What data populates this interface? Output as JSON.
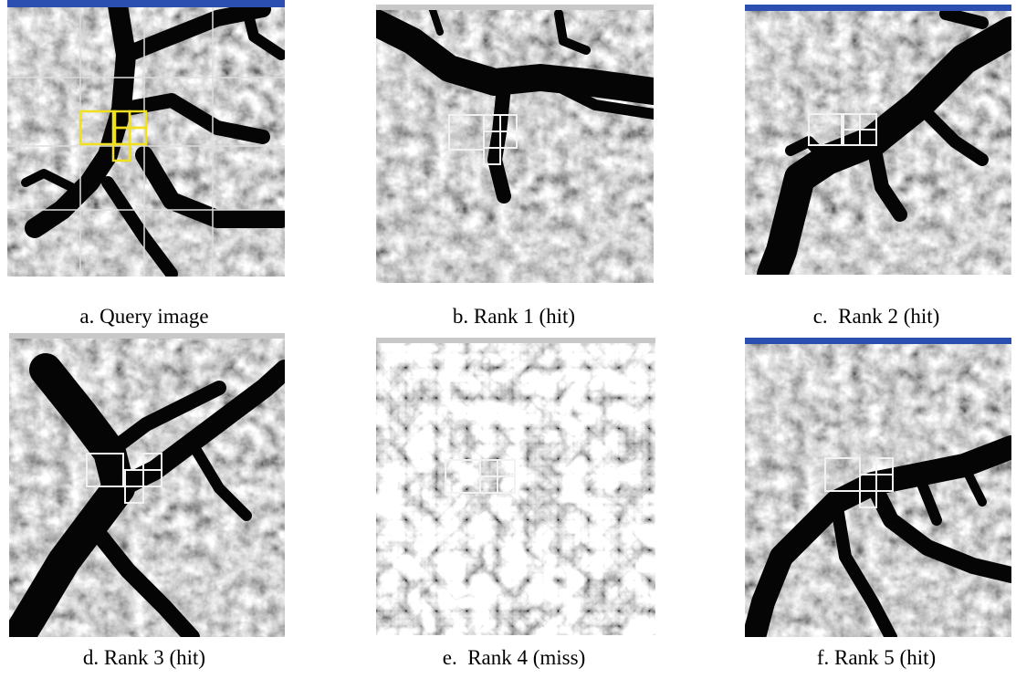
{
  "figure": {
    "panels": [
      {
        "caption": "a. Query image"
      },
      {
        "caption": "b. Rank 1 (hit)"
      },
      {
        "caption": "c.  Rank 2 (hit)"
      },
      {
        "caption": "d. Rank 3 (hit)"
      },
      {
        "caption": "e.  Rank 4 (miss)"
      },
      {
        "caption": "f. Rank 5 (hit)"
      }
    ]
  }
}
